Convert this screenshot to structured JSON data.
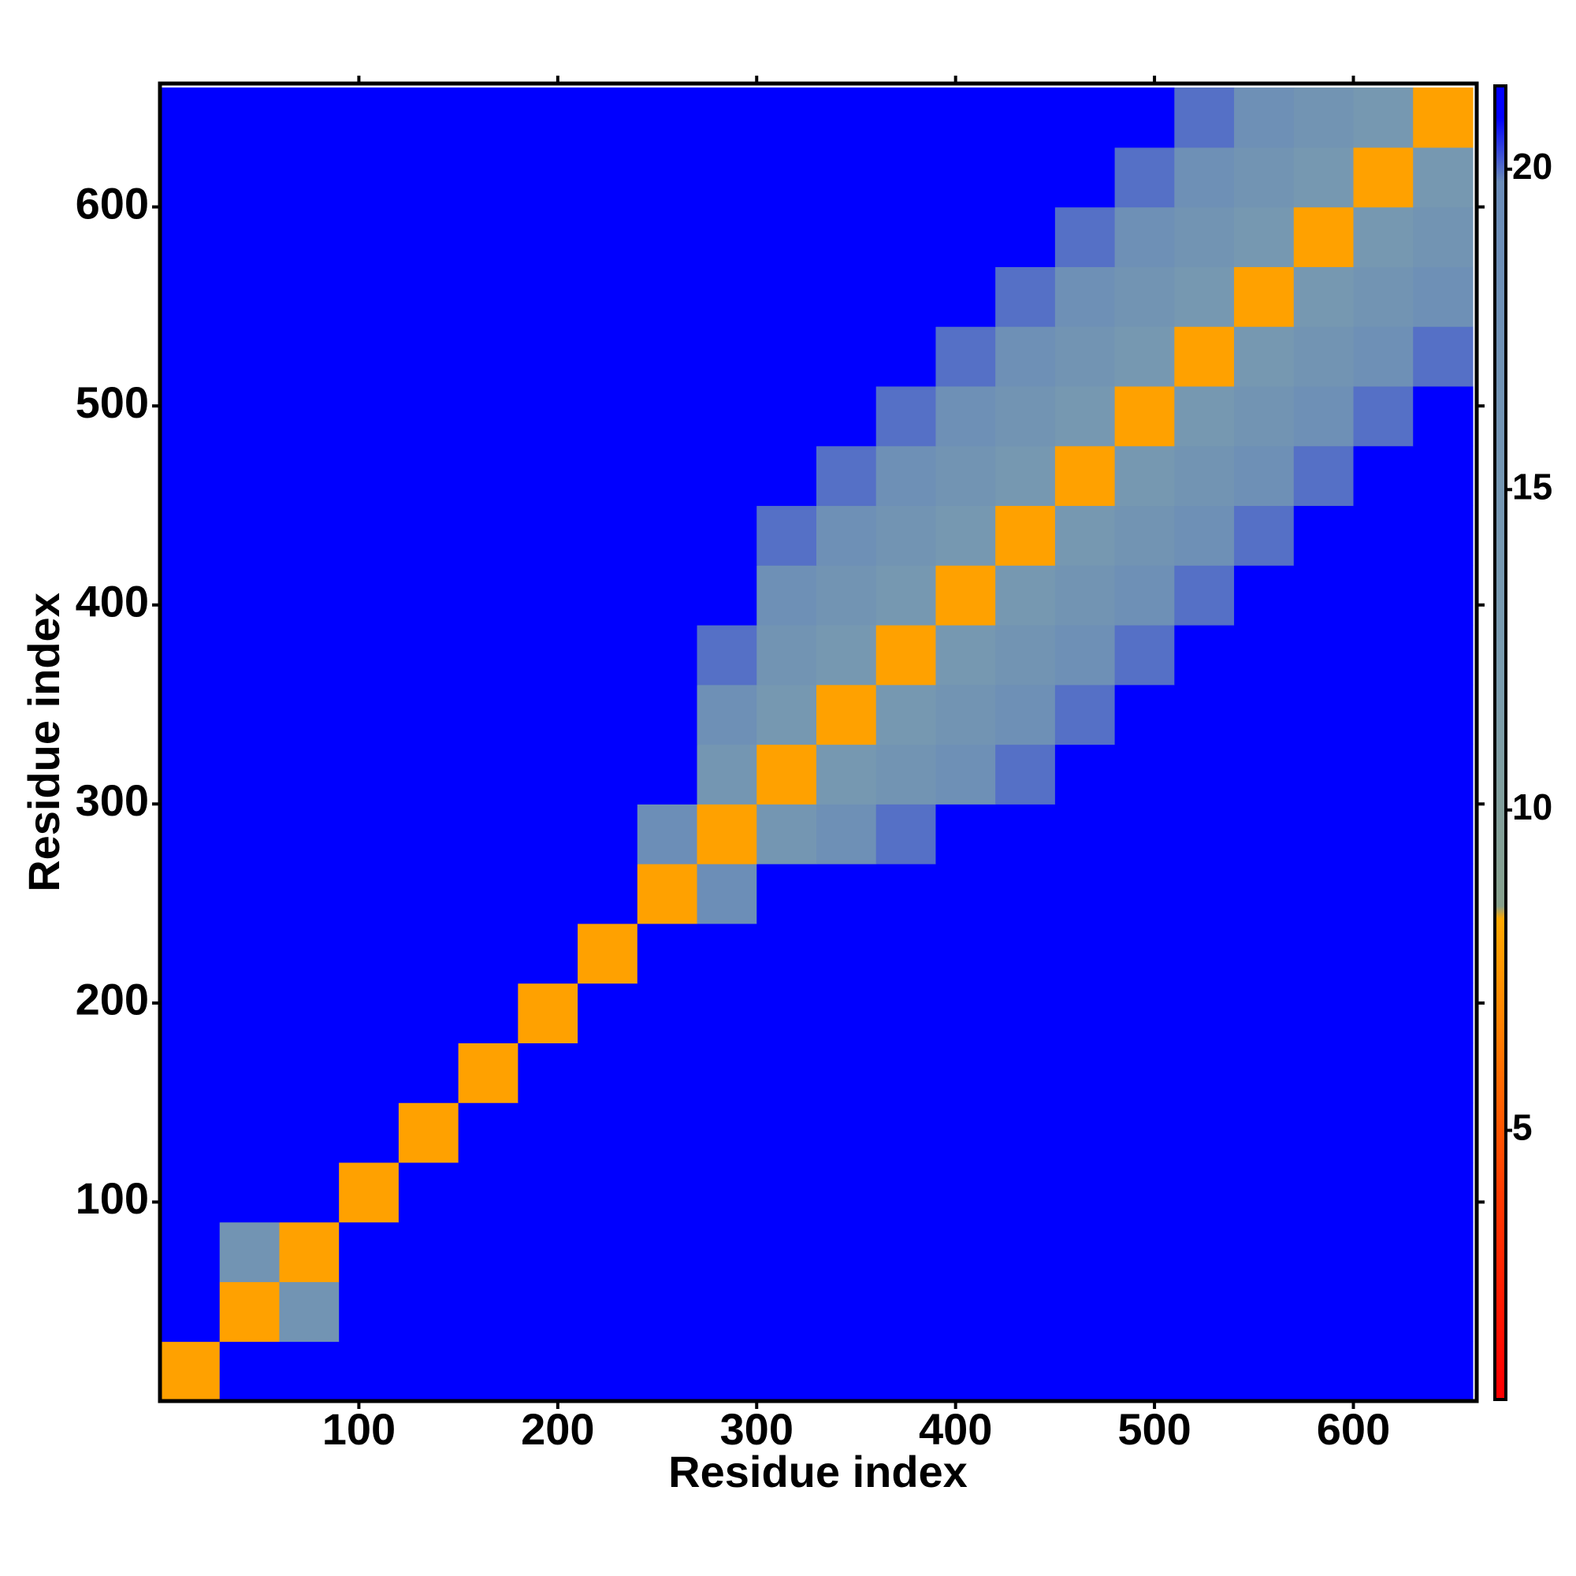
{
  "chart_data": {
    "type": "heatmap",
    "x_label": "Residue index",
    "y_label": "Residue index",
    "xlim": [
      0,
      662
    ],
    "ylim": [
      0,
      662
    ],
    "xticks": [
      100,
      200,
      300,
      400,
      500,
      600
    ],
    "yticks": [
      100,
      200,
      300,
      400,
      500,
      600
    ],
    "x_edges": [
      0,
      30,
      60,
      90,
      120,
      150,
      180,
      210,
      240,
      270,
      300,
      330,
      360,
      390,
      420,
      450,
      480,
      510,
      540,
      570,
      600,
      630,
      660
    ],
    "y_edges": [
      0,
      30,
      60,
      90,
      120,
      150,
      180,
      210,
      240,
      270,
      300,
      330,
      360,
      390,
      420,
      450,
      480,
      510,
      540,
      570,
      600,
      630,
      660
    ],
    "z": [
      [
        8,
        21,
        21,
        21,
        21,
        21,
        21,
        21,
        21,
        21,
        21,
        21,
        21,
        21,
        21,
        21,
        21,
        21,
        21,
        21,
        21,
        21
      ],
      [
        21,
        8,
        16,
        21,
        21,
        21,
        21,
        21,
        21,
        21,
        21,
        21,
        21,
        21,
        21,
        21,
        21,
        21,
        21,
        21,
        21,
        21
      ],
      [
        21,
        16,
        8,
        21,
        21,
        21,
        21,
        21,
        21,
        21,
        21,
        21,
        21,
        21,
        21,
        21,
        21,
        21,
        21,
        21,
        21,
        21
      ],
      [
        21,
        21,
        21,
        8,
        21,
        21,
        21,
        21,
        21,
        21,
        21,
        21,
        21,
        21,
        21,
        21,
        21,
        21,
        21,
        21,
        21,
        21
      ],
      [
        21,
        21,
        21,
        21,
        8,
        21,
        21,
        21,
        21,
        21,
        21,
        21,
        21,
        21,
        21,
        21,
        21,
        21,
        21,
        21,
        21,
        21
      ],
      [
        21,
        21,
        21,
        21,
        21,
        8,
        21,
        21,
        21,
        21,
        21,
        21,
        21,
        21,
        21,
        21,
        21,
        21,
        21,
        21,
        21,
        21
      ],
      [
        21,
        21,
        21,
        21,
        21,
        21,
        8,
        21,
        21,
        21,
        21,
        21,
        21,
        21,
        21,
        21,
        21,
        21,
        21,
        21,
        21,
        21
      ],
      [
        21,
        21,
        21,
        21,
        21,
        21,
        21,
        8,
        21,
        21,
        21,
        21,
        21,
        21,
        21,
        21,
        21,
        21,
        21,
        21,
        21,
        21
      ],
      [
        21,
        21,
        21,
        21,
        21,
        21,
        21,
        21,
        8,
        19,
        21,
        21,
        21,
        21,
        21,
        21,
        21,
        21,
        21,
        21,
        21,
        21
      ],
      [
        21,
        21,
        21,
        21,
        21,
        21,
        21,
        21,
        19,
        8,
        15,
        18,
        20,
        21,
        21,
        21,
        21,
        21,
        21,
        21,
        21,
        21
      ],
      [
        21,
        21,
        21,
        21,
        21,
        21,
        21,
        21,
        21,
        15,
        8,
        14,
        16,
        18,
        20,
        21,
        21,
        21,
        21,
        21,
        21,
        21
      ],
      [
        21,
        21,
        21,
        21,
        21,
        21,
        21,
        21,
        21,
        18,
        14,
        8,
        14,
        16,
        18,
        20,
        21,
        21,
        21,
        21,
        21,
        21
      ],
      [
        21,
        21,
        21,
        21,
        21,
        21,
        21,
        21,
        21,
        20,
        16,
        14,
        8,
        14,
        16,
        18,
        20,
        21,
        21,
        21,
        21,
        21
      ],
      [
        21,
        21,
        21,
        21,
        21,
        21,
        21,
        21,
        21,
        21,
        18,
        16,
        14,
        8,
        14,
        16,
        18,
        20,
        21,
        21,
        21,
        21
      ],
      [
        21,
        21,
        21,
        21,
        21,
        21,
        21,
        21,
        21,
        21,
        20,
        18,
        16,
        14,
        8,
        14,
        16,
        18,
        20,
        21,
        21,
        21
      ],
      [
        21,
        21,
        21,
        21,
        21,
        21,
        21,
        21,
        21,
        21,
        21,
        20,
        18,
        16,
        14,
        8,
        14,
        16,
        18,
        20,
        21,
        21
      ],
      [
        21,
        21,
        21,
        21,
        21,
        21,
        21,
        21,
        21,
        21,
        21,
        21,
        20,
        18,
        16,
        14,
        8,
        14,
        16,
        18,
        20,
        21
      ],
      [
        21,
        21,
        21,
        21,
        21,
        21,
        21,
        21,
        21,
        21,
        21,
        21,
        21,
        20,
        18,
        16,
        14,
        8,
        14,
        16,
        18,
        20
      ],
      [
        21,
        21,
        21,
        21,
        21,
        21,
        21,
        21,
        21,
        21,
        21,
        21,
        21,
        21,
        20,
        18,
        16,
        14,
        8,
        14,
        16,
        18
      ],
      [
        21,
        21,
        21,
        21,
        21,
        21,
        21,
        21,
        21,
        21,
        21,
        21,
        21,
        21,
        21,
        20,
        18,
        16,
        14,
        8,
        14,
        16
      ],
      [
        21,
        21,
        21,
        21,
        21,
        21,
        21,
        21,
        21,
        21,
        21,
        21,
        21,
        21,
        21,
        21,
        20,
        18,
        16,
        14,
        8,
        14
      ],
      [
        21,
        21,
        21,
        21,
        21,
        21,
        21,
        21,
        21,
        21,
        21,
        21,
        21,
        21,
        21,
        21,
        21,
        20,
        18,
        16,
        14,
        8
      ]
    ],
    "colorscale": [
      {
        "value": 1,
        "color": "#ff0000"
      },
      {
        "value": 4,
        "color": "#ff3a00"
      },
      {
        "value": 7,
        "color": "#ff8a00"
      },
      {
        "value": 8.3,
        "color": "#ffa800"
      },
      {
        "value": 8.5,
        "color": "#86a08c"
      },
      {
        "value": 12,
        "color": "#7a9cae"
      },
      {
        "value": 19.8,
        "color": "#6a8cb8"
      },
      {
        "value": 20.8,
        "color": "#0000ff"
      }
    ],
    "colorlim": [
      0.8,
      21.3
    ],
    "colorticks": [
      5,
      10,
      15,
      20
    ]
  }
}
